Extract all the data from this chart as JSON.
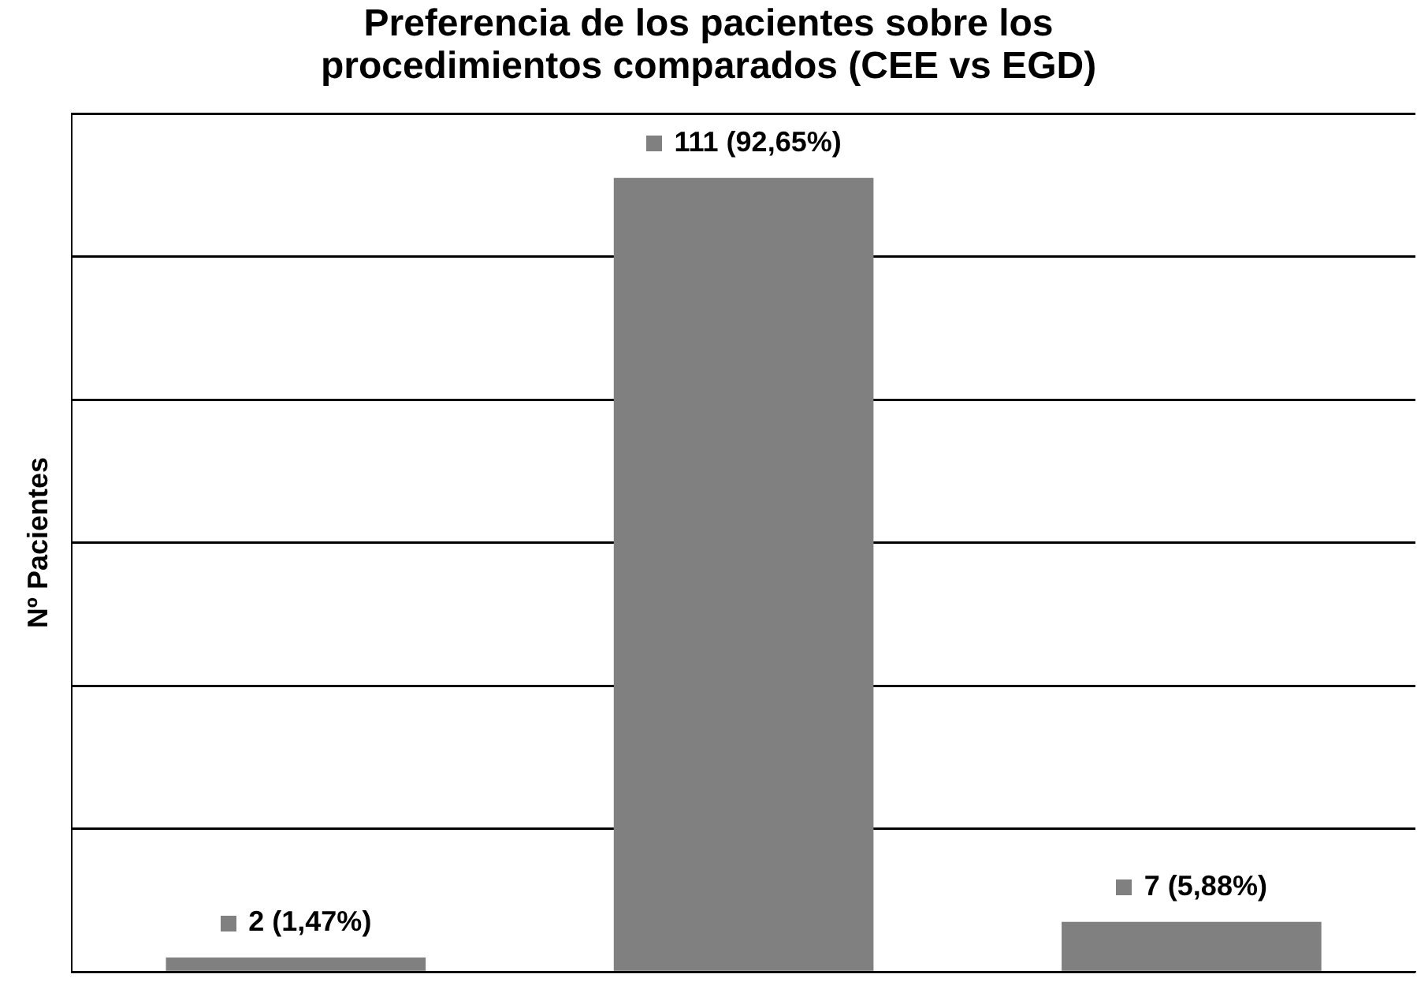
{
  "chart_data": {
    "type": "bar",
    "title": "Preferencia de los pacientes sobre los procedimientos comparados (CEE vs EGD)",
    "ylabel": "Nº Pacientes",
    "categories": [
      null,
      null,
      null
    ],
    "series": [
      {
        "color": "#808080",
        "values": [
          2,
          111,
          7
        ],
        "value_labels": [
          "2 (1,47%)",
          "111 (92,65%)",
          "7 (5,88%)"
        ]
      }
    ],
    "ylim": [
      0,
      120
    ],
    "yticks": [
      {
        "value": 0,
        "label": null
      },
      {
        "value": 20,
        "label": null
      },
      {
        "value": 40,
        "label": null
      },
      {
        "value": 60,
        "label": null
      },
      {
        "value": 80,
        "label": null
      },
      {
        "value": 100,
        "label": null
      },
      {
        "value": 120,
        "label": null
      }
    ],
    "grid": "y",
    "legend": false
  }
}
